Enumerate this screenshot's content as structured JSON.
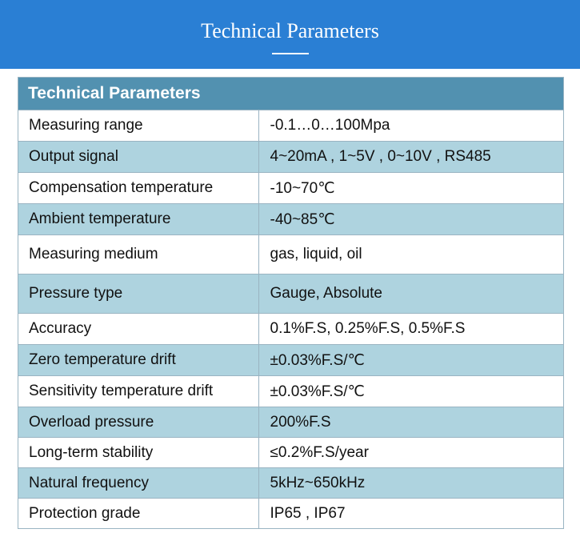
{
  "banner": {
    "title": "Technical Parameters"
  },
  "table": {
    "header": "Technical Parameters",
    "rows": [
      {
        "label": "Measuring range",
        "value": "-0.1…0…100Mpa"
      },
      {
        "label": "Output signal",
        "value": "4~20mA , 1~5V , 0~10V , RS485"
      },
      {
        "label": "Compensation temperature",
        "value": "-10~70℃"
      },
      {
        "label": "Ambient temperature",
        "value": "-40~85℃"
      },
      {
        "label": "Measuring medium",
        "value": "gas, liquid, oil"
      },
      {
        "label": "Pressure type",
        "value": "Gauge, Absolute"
      },
      {
        "label": "Accuracy",
        "value": "0.1%F.S,  0.25%F.S,  0.5%F.S"
      },
      {
        "label": "Zero temperature drift",
        "value": "±0.03%F.S/℃"
      },
      {
        "label": "Sensitivity temperature drift",
        "value": "±0.03%F.S/℃"
      },
      {
        "label": "Overload pressure",
        "value": "200%F.S"
      },
      {
        "label": "Long-term stability",
        "value": "≤0.2%F.S/year"
      },
      {
        "label": "Natural frequency",
        "value": "5kHz~650kHz"
      },
      {
        "label": "Protection grade",
        "value": "IP65 , IP67"
      }
    ]
  },
  "colors": {
    "banner": "#2a7fd4",
    "table_header": "#5291b0",
    "row_alt": "#aed3df",
    "grid": "#9ab4c2"
  }
}
